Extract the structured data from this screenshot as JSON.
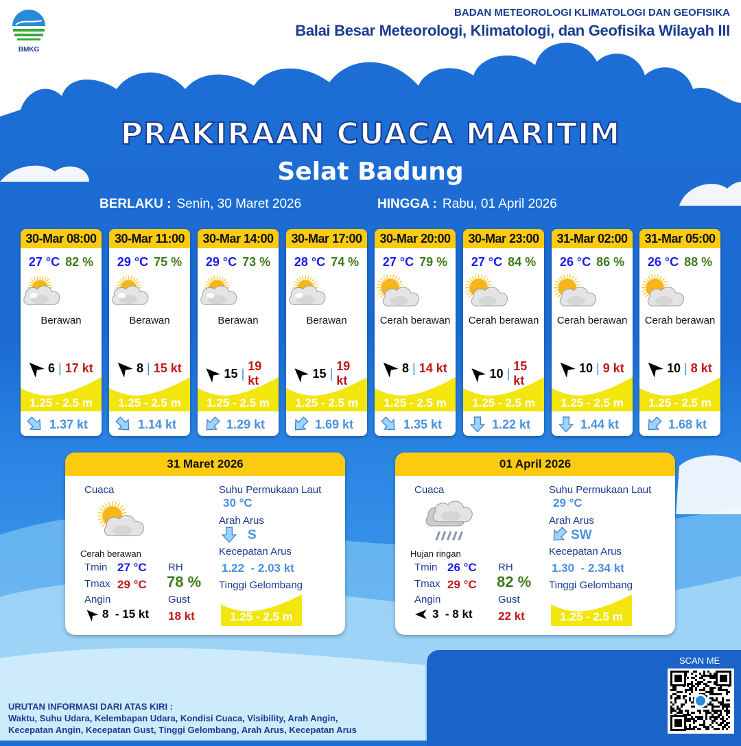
{
  "header": {
    "agency": "BADAN METEOROLOGI KLIMATOLOGI DAN GEOFISIKA",
    "office": "Balai Besar Meteorologi, Klimatologi, dan Geofisika Wilayah III",
    "logo_text": "BMKG"
  },
  "title": "PRAKIRAAN CUACA MARITIM",
  "area": "Selat Badung",
  "validity": {
    "from_label": "BERLAKU :",
    "from": "Senin, 30 Maret 2026",
    "to_label": "HINGGA :",
    "to": "Rabu, 01 April 2026"
  },
  "colors": {
    "accent": "#fccb10",
    "background": "#1d6fd6",
    "temp": "#1a1af0",
    "humidity": "#3e7a1a",
    "gust": "#c01818",
    "current": "#4a90e0",
    "wave": "#f2e60e"
  },
  "forecasts": [
    {
      "time": "30-Mar 08:00",
      "temp": "27 °C",
      "rh": "82 %",
      "weather": "Berawan",
      "icon": "cloudy-icon",
      "wind_icon": "arrow-up-left",
      "wind": "6",
      "gust": "17 kt",
      "wave": "1.25 - 2.5 m",
      "current_dir": "SE",
      "current": "1.37 kt"
    },
    {
      "time": "30-Mar 11:00",
      "temp": "29 °C",
      "rh": "75 %",
      "weather": "Berawan",
      "icon": "cloudy-icon",
      "wind_icon": "arrow-up-left",
      "wind": "8",
      "gust": "15 kt",
      "wave": "1.25 - 2.5 m",
      "current_dir": "SE",
      "current": "1.14 kt"
    },
    {
      "time": "30-Mar 14:00",
      "temp": "29 °C",
      "rh": "73 %",
      "weather": "Berawan",
      "icon": "cloudy-icon",
      "wind_icon": "arrow-up-left",
      "wind": "15",
      "gust": "19 kt",
      "wave": "1.25 - 2.5 m",
      "current_dir": "SW",
      "current": "1.29 kt"
    },
    {
      "time": "30-Mar 17:00",
      "temp": "28 °C",
      "rh": "74 %",
      "weather": "Berawan",
      "icon": "cloudy-icon",
      "wind_icon": "arrow-up-left",
      "wind": "15",
      "gust": "19 kt",
      "wave": "1.25 - 2.5 m",
      "current_dir": "SW",
      "current": "1.69 kt"
    },
    {
      "time": "30-Mar 20:00",
      "temp": "27 °C",
      "rh": "79 %",
      "weather": "Cerah berawan",
      "icon": "partly-cloudy-icon",
      "wind_icon": "arrow-up-left",
      "wind": "8",
      "gust": "14 kt",
      "wave": "1.25 - 2.5 m",
      "current_dir": "SE",
      "current": "1.35 kt"
    },
    {
      "time": "30-Mar 23:00",
      "temp": "27 °C",
      "rh": "84 %",
      "weather": "Cerah berawan",
      "icon": "partly-cloudy-icon",
      "wind_icon": "arrow-up-left",
      "wind": "10",
      "gust": "15 kt",
      "wave": "1.25 - 2.5 m",
      "current_dir": "S",
      "current": "1.22 kt"
    },
    {
      "time": "31-Mar 02:00",
      "temp": "26 °C",
      "rh": "86 %",
      "weather": "Cerah berawan",
      "icon": "partly-cloudy-icon",
      "wind_icon": "arrow-up-left",
      "wind": "10",
      "gust": "9 kt",
      "wave": "1.25 - 2.5 m",
      "current_dir": "S",
      "current": "1.44 kt"
    },
    {
      "time": "31-Mar 05:00",
      "temp": "26 °C",
      "rh": "88 %",
      "weather": "Cerah berawan",
      "icon": "partly-cloudy-icon",
      "wind_icon": "arrow-up-left",
      "wind": "10",
      "gust": "8 kt",
      "wave": "1.25 - 2.5 m",
      "current_dir": "SW",
      "current": "1.68 kt"
    }
  ],
  "labels": {
    "weather": "Cuaca",
    "sst": "Suhu Permukaan Laut",
    "current_dir": "Arah Arus",
    "current_speed": "Kecepatan Arus",
    "wave": "Tinggi Gelombang",
    "tmin": "Tmin",
    "tmax": "Tmax",
    "rh": "RH",
    "wind": "Angin",
    "gust": "Gust"
  },
  "daily": [
    {
      "date": "31 Maret 2026",
      "weather": "Cerah berawan",
      "icon": "partly-cloudy-icon",
      "tmin": "27 °C",
      "tmax": "29 °C",
      "rh": "78 %",
      "wind_icon": "arrow-up-left",
      "wind": "8  - 15 kt",
      "gust": "18 kt",
      "sst": "30 °C",
      "current_dir": "S",
      "current_speed": "1.22  - 2.03 kt",
      "wave": "1.25 - 2.5 m"
    },
    {
      "date": "01 April 2026",
      "weather": "Hujan ringan",
      "icon": "light-rain-icon",
      "tmin": "26 °C",
      "tmax": "29 °C",
      "rh": "82 %",
      "wind_icon": "arrow-left",
      "wind": "3  - 8 kt",
      "gust": "22 kt",
      "sst": "29 °C",
      "current_dir": "SW",
      "current_speed": "1.30  - 2.34 kt",
      "wave": "1.25 - 2.5 m"
    }
  ],
  "footer": {
    "heading": "URUTAN INFORMASI DARI ATAS KIRI :",
    "line1": "Waktu, Suhu Udara, Kelembapan Udara, Kondisi Cuaca, Visibility, Arah Angin,",
    "line2": "Kecepatan Angin, Kecepatan Gust, Tinggi Gelombang, Arah Arus, Kecepatan Arus"
  },
  "qr": {
    "label": "SCAN ME"
  }
}
